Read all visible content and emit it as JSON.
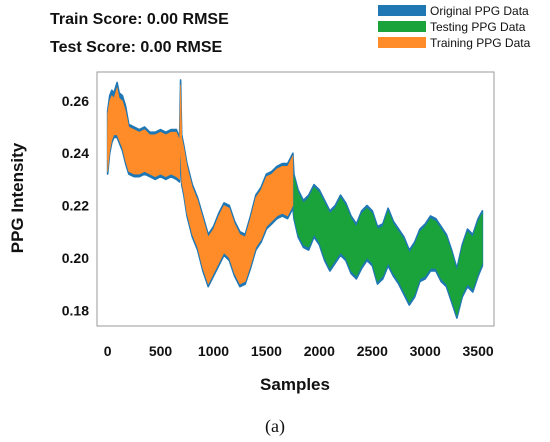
{
  "scores": {
    "train": "Train Score: 0.00 RMSE",
    "test": "Test Score: 0.00 RMSE"
  },
  "caption": "(a)",
  "chart_data": {
    "type": "line",
    "title": "",
    "xlabel": "Samples",
    "ylabel": "PPG Intensity",
    "xlim": [
      -100,
      3650
    ],
    "ylim": [
      0.174,
      0.271
    ],
    "xticks": [
      0,
      500,
      1000,
      1500,
      2000,
      2500,
      3000,
      3500
    ],
    "xtick_labels": [
      "0",
      "500",
      "1000",
      "1500",
      "2000",
      "2500",
      "3000",
      "3500"
    ],
    "yticks": [
      0.18,
      0.2,
      0.22,
      0.24,
      0.26
    ],
    "ytick_labels": [
      "0.18",
      "0.20",
      "0.22",
      "0.24",
      "0.26"
    ],
    "grid": false,
    "legend_position": "top-right",
    "legend": [
      "Original PPG Data",
      "Testing PPG Data",
      "Training PPG Data"
    ],
    "colors": {
      "original": "#1f77b4",
      "testing": "#1aa33a",
      "training": "#ff8c28"
    },
    "series": [
      {
        "name": "Original PPG Data",
        "color": "#1f77b4",
        "x": [
          0,
          20,
          40,
          60,
          90,
          110,
          140,
          170,
          200,
          250,
          300,
          350,
          400,
          450,
          500,
          550,
          600,
          650,
          680,
          690,
          700,
          720,
          750,
          800,
          850,
          900,
          950,
          1000,
          1050,
          1100,
          1150,
          1200,
          1250,
          1300,
          1350,
          1400,
          1450,
          1500,
          1550,
          1600,
          1650,
          1700,
          1750,
          1760,
          1800,
          1850,
          1900,
          1950,
          2000,
          2050,
          2100,
          2150,
          2200,
          2250,
          2300,
          2350,
          2400,
          2450,
          2500,
          2550,
          2600,
          2650,
          2700,
          2750,
          2800,
          2850,
          2900,
          2950,
          3000,
          3050,
          3100,
          3150,
          3200,
          3250,
          3300,
          3350,
          3400,
          3450,
          3500,
          3540
        ],
        "lower": [
          0.232,
          0.24,
          0.244,
          0.246,
          0.246,
          0.244,
          0.241,
          0.236,
          0.232,
          0.231,
          0.231,
          0.232,
          0.231,
          0.23,
          0.231,
          0.23,
          0.231,
          0.23,
          0.229,
          0.245,
          0.228,
          0.224,
          0.216,
          0.208,
          0.203,
          0.195,
          0.189,
          0.193,
          0.197,
          0.201,
          0.199,
          0.193,
          0.189,
          0.19,
          0.196,
          0.203,
          0.206,
          0.211,
          0.213,
          0.215,
          0.216,
          0.215,
          0.219,
          0.215,
          0.208,
          0.204,
          0.203,
          0.208,
          0.205,
          0.199,
          0.195,
          0.198,
          0.201,
          0.199,
          0.194,
          0.192,
          0.196,
          0.199,
          0.197,
          0.19,
          0.192,
          0.197,
          0.193,
          0.19,
          0.186,
          0.182,
          0.185,
          0.191,
          0.192,
          0.195,
          0.195,
          0.191,
          0.189,
          0.183,
          0.177,
          0.185,
          0.189,
          0.187,
          0.193,
          0.197
        ],
        "upper": [
          0.256,
          0.262,
          0.264,
          0.263,
          0.267,
          0.263,
          0.262,
          0.258,
          0.251,
          0.25,
          0.249,
          0.25,
          0.248,
          0.248,
          0.249,
          0.248,
          0.249,
          0.249,
          0.246,
          0.268,
          0.247,
          0.243,
          0.236,
          0.228,
          0.223,
          0.216,
          0.209,
          0.212,
          0.217,
          0.221,
          0.22,
          0.214,
          0.21,
          0.209,
          0.216,
          0.224,
          0.227,
          0.232,
          0.233,
          0.235,
          0.236,
          0.236,
          0.24,
          0.232,
          0.226,
          0.222,
          0.224,
          0.228,
          0.226,
          0.222,
          0.218,
          0.22,
          0.224,
          0.221,
          0.216,
          0.213,
          0.218,
          0.22,
          0.218,
          0.212,
          0.213,
          0.219,
          0.214,
          0.211,
          0.208,
          0.203,
          0.206,
          0.211,
          0.213,
          0.216,
          0.215,
          0.212,
          0.209,
          0.203,
          0.196,
          0.205,
          0.211,
          0.209,
          0.215,
          0.218
        ]
      },
      {
        "name": "Training PPG Data",
        "color": "#ff8c28",
        "x": [
          0,
          20,
          40,
          60,
          90,
          110,
          140,
          170,
          200,
          250,
          300,
          350,
          400,
          450,
          500,
          550,
          600,
          650,
          680,
          690,
          700,
          720,
          750,
          800,
          850,
          900,
          950,
          1000,
          1050,
          1100,
          1150,
          1200,
          1250,
          1300,
          1350,
          1400,
          1450,
          1500,
          1550,
          1600,
          1650,
          1700,
          1750
        ],
        "lower": [
          0.233,
          0.241,
          0.245,
          0.247,
          0.247,
          0.245,
          0.242,
          0.237,
          0.233,
          0.232,
          0.232,
          0.233,
          0.232,
          0.231,
          0.232,
          0.231,
          0.232,
          0.231,
          0.23,
          0.246,
          0.229,
          0.225,
          0.217,
          0.209,
          0.204,
          0.196,
          0.19,
          0.194,
          0.198,
          0.202,
          0.2,
          0.194,
          0.19,
          0.191,
          0.197,
          0.204,
          0.207,
          0.212,
          0.214,
          0.216,
          0.217,
          0.216,
          0.22
        ],
        "upper": [
          0.255,
          0.26,
          0.262,
          0.261,
          0.265,
          0.261,
          0.26,
          0.256,
          0.25,
          0.249,
          0.248,
          0.249,
          0.247,
          0.247,
          0.248,
          0.247,
          0.248,
          0.248,
          0.245,
          0.266,
          0.246,
          0.242,
          0.235,
          0.227,
          0.222,
          0.215,
          0.208,
          0.211,
          0.216,
          0.22,
          0.219,
          0.213,
          0.209,
          0.208,
          0.215,
          0.223,
          0.226,
          0.231,
          0.232,
          0.234,
          0.235,
          0.235,
          0.239
        ]
      },
      {
        "name": "Testing PPG Data",
        "color": "#1aa33a",
        "x": [
          1760,
          1800,
          1850,
          1900,
          1950,
          2000,
          2050,
          2100,
          2150,
          2200,
          2250,
          2300,
          2350,
          2400,
          2450,
          2500,
          2550,
          2600,
          2650,
          2700,
          2750,
          2800,
          2850,
          2900,
          2950,
          3000,
          3050,
          3100,
          3150,
          3200,
          3250,
          3300,
          3350,
          3400,
          3450,
          3500,
          3540
        ],
        "lower": [
          0.216,
          0.209,
          0.205,
          0.204,
          0.209,
          0.206,
          0.2,
          0.196,
          0.199,
          0.202,
          0.2,
          0.195,
          0.193,
          0.197,
          0.2,
          0.198,
          0.191,
          0.193,
          0.198,
          0.194,
          0.191,
          0.187,
          0.183,
          0.186,
          0.192,
          0.193,
          0.196,
          0.196,
          0.192,
          0.19,
          0.184,
          0.178,
          0.186,
          0.19,
          0.188,
          0.194,
          0.198
        ],
        "upper": [
          0.231,
          0.225,
          0.221,
          0.223,
          0.227,
          0.225,
          0.221,
          0.217,
          0.219,
          0.223,
          0.22,
          0.215,
          0.212,
          0.217,
          0.219,
          0.217,
          0.211,
          0.212,
          0.218,
          0.213,
          0.21,
          0.207,
          0.202,
          0.205,
          0.21,
          0.212,
          0.215,
          0.214,
          0.211,
          0.208,
          0.202,
          0.195,
          0.204,
          0.21,
          0.208,
          0.214,
          0.217
        ]
      }
    ]
  }
}
